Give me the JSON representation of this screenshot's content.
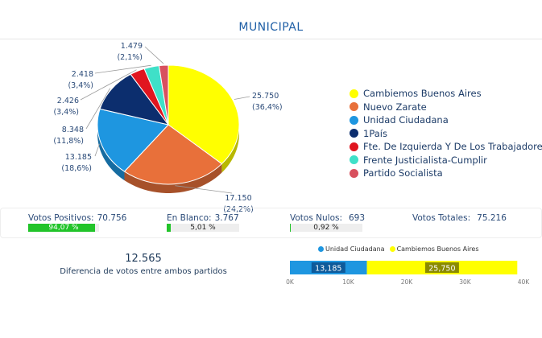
{
  "header": {
    "title": "MUNICIPAL"
  },
  "chart_data": [
    {
      "type": "pie",
      "categories": [
        "Cambiemos Buenos Aires",
        "Nuevo Zarate",
        "Unidad Ciudadana",
        "1País",
        "Fte. De Izquierda Y De Los Trabajadores",
        "Frente Justicialista-Cumplir",
        "Partido Socialista"
      ],
      "values": [
        25750,
        17150,
        13185,
        8348,
        2426,
        2418,
        1479
      ],
      "value_labels": [
        "25.750",
        "17.150",
        "13.185",
        "8.348",
        "2.426",
        "2.418",
        "1.479"
      ],
      "percent_labels": [
        "(36,4%)",
        "(24,2%)",
        "(18,6%)",
        "(11,8%)",
        "(3,4%)",
        "(3,4%)",
        "(2,1%)"
      ],
      "colors": [
        "#ffff00",
        "#e8703a",
        "#1e96e0",
        "#0c2e6e",
        "#e0151f",
        "#3fe0c8",
        "#d8505e"
      ],
      "legend": "right"
    },
    {
      "type": "bar",
      "orientation": "horizontal",
      "stacked": true,
      "series": [
        {
          "name": "Unidad Ciudadana",
          "values": [
            13185
          ],
          "label": "13,185",
          "color": "#1e96e0"
        },
        {
          "name": "Cambiemos Buenos Aires",
          "values": [
            25750
          ],
          "label": "25,750",
          "color": "#ffff00"
        }
      ],
      "x_ticks": [
        "0K",
        "10K",
        "20K",
        "30K",
        "40K"
      ],
      "xlim": [
        0,
        40000
      ],
      "legend": "top"
    }
  ],
  "stats": {
    "positive": {
      "label": "Votos Positivos:",
      "value": "70.756",
      "pct": "94,07 %",
      "fraction": 0.9407
    },
    "blank": {
      "label": "En Blanco:",
      "value": "3.767",
      "pct": "5,01 %",
      "fraction": 0.0501
    },
    "null": {
      "label": "Votos Nulos:",
      "value": "693",
      "pct": "0,92 %",
      "fraction": 0.0092
    },
    "total": {
      "label": "Votos Totales:",
      "value": "75.216"
    }
  },
  "difference": {
    "value": "12.565",
    "label": "Diferencia de votos entre ambos partidos"
  }
}
